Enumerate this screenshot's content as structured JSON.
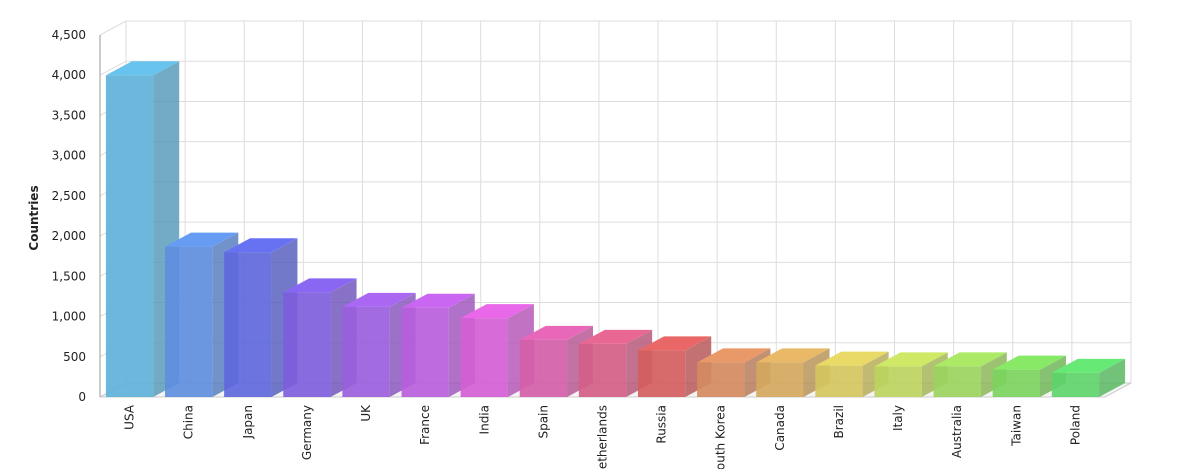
{
  "chart_data": {
    "type": "bar3d",
    "y_label": "Countries",
    "categories": [
      "USA",
      "China",
      "Japan",
      "Germany",
      "UK",
      "France",
      "India",
      "Spain",
      "Netherlands",
      "Russia",
      "South Korea",
      "Canada",
      "Brazil",
      "Italy",
      "Australia",
      "Taiwan",
      "Poland"
    ],
    "values": [
      4000,
      1870,
      1800,
      1300,
      1120,
      1110,
      980,
      710,
      660,
      580,
      430,
      430,
      390,
      380,
      380,
      340,
      300
    ],
    "colors": [
      "#5fb2d9",
      "#5e8ede",
      "#5e68dc",
      "#7d5edc",
      "#9a5edc",
      "#b75edc",
      "#d45ed4",
      "#d45ea8",
      "#d45e86",
      "#d45e5e",
      "#d48a5e",
      "#d4a85e",
      "#d4c65e",
      "#bcd45e",
      "#9cd45e",
      "#7cd45e",
      "#5ed46a"
    ],
    "ylim": [
      0,
      4500
    ],
    "yticks": [
      0,
      500,
      {
        "value": 1000,
        "label": "1,000"
      },
      {
        "value": 1500,
        "label": "1,500"
      },
      {
        "value": 2000,
        "label": "2,000"
      },
      {
        "value": 2500,
        "label": "2,500"
      },
      {
        "value": 3000,
        "label": "3,000"
      },
      {
        "value": 3500,
        "label": "3,500"
      },
      {
        "value": 4000,
        "label": "4,000"
      },
      {
        "value": 4500,
        "label": "4,500"
      }
    ],
    "grid": true
  }
}
